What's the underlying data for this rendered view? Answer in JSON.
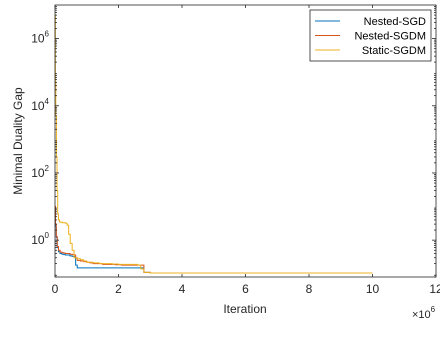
{
  "chart_data": {
    "type": "line",
    "title": "",
    "xlabel": "Iteration",
    "ylabel": "Minimal Duality Gap",
    "xlim": [
      0,
      12000000
    ],
    "ylim": [
      0.08,
      10000000
    ],
    "yscale": "log",
    "grid": false,
    "box": true,
    "legend_position": "top-right",
    "x_ticks": [
      {
        "value": 0,
        "label": "0"
      },
      {
        "value": 2000000,
        "label": "2"
      },
      {
        "value": 4000000,
        "label": "4"
      },
      {
        "value": 6000000,
        "label": "6"
      },
      {
        "value": 8000000,
        "label": "8"
      },
      {
        "value": 10000000,
        "label": "10"
      },
      {
        "value": 12000000,
        "label": "12"
      }
    ],
    "x_exponent_label": {
      "base": "×10",
      "exponent": "6"
    },
    "y_ticks": [
      {
        "value": 1,
        "base": "10",
        "exponent": "0"
      },
      {
        "value": 100,
        "base": "10",
        "exponent": "2"
      },
      {
        "value": 10000,
        "base": "10",
        "exponent": "4"
      },
      {
        "value": 1000000,
        "base": "10",
        "exponent": "6"
      }
    ],
    "series": [
      {
        "name": "Nested-SGD",
        "color": "#0072BD",
        "x": [
          0,
          15000,
          40000,
          70000,
          110000,
          160000,
          220000,
          280000,
          330000,
          400000,
          470000,
          540000,
          600000,
          650000,
          700000,
          800000,
          900000,
          1000000,
          1100000,
          1200000,
          1300000,
          1500000,
          1700000,
          1900000,
          2100000,
          2300000,
          2500000,
          2650000,
          2750000,
          2800000,
          3000000,
          4000000,
          5000000,
          6000000,
          7000000,
          8000000,
          9000000,
          10000000
        ],
        "y": [
          8,
          2.5,
          1.2,
          0.6,
          0.45,
          0.4,
          0.38,
          0.37,
          0.36,
          0.36,
          0.34,
          0.33,
          0.32,
          0.18,
          0.15,
          0.15,
          0.15,
          0.15,
          0.15,
          0.15,
          0.15,
          0.15,
          0.15,
          0.15,
          0.15,
          0.15,
          0.15,
          0.15,
          0.15,
          0.11,
          0.105,
          0.105,
          0.105,
          0.105,
          0.105,
          0.105,
          0.105,
          0.105
        ]
      },
      {
        "name": "Nested-SGDM",
        "color": "#D95319",
        "x": [
          0,
          15000,
          40000,
          70000,
          110000,
          160000,
          220000,
          280000,
          330000,
          400000,
          470000,
          540000,
          600000,
          650000,
          700000,
          800000,
          900000,
          1000000,
          1100000,
          1200000,
          1300000,
          1500000,
          1700000,
          1900000,
          2100000,
          2300000,
          2500000,
          2650000,
          2750000,
          2800000,
          3000000,
          4000000,
          5000000,
          6000000,
          7000000,
          8000000,
          9000000,
          10000000
        ],
        "y": [
          10,
          3,
          1.3,
          0.65,
          0.5,
          0.44,
          0.42,
          0.41,
          0.4,
          0.4,
          0.38,
          0.37,
          0.36,
          0.3,
          0.25,
          0.24,
          0.23,
          0.22,
          0.21,
          0.2,
          0.2,
          0.19,
          0.19,
          0.185,
          0.18,
          0.18,
          0.18,
          0.18,
          0.18,
          0.11,
          0.105,
          0.105,
          0.105,
          0.105,
          0.105,
          0.105,
          0.105,
          0.105
        ]
      },
      {
        "name": "Static-SGDM",
        "color": "#EDB120",
        "x": [
          0,
          10000,
          25000,
          45000,
          65000,
          85000,
          110000,
          140000,
          180000,
          230000,
          280000,
          330000,
          380000,
          430000,
          480000,
          540000,
          600000,
          700000,
          800000,
          900000,
          1000000,
          1200000,
          1400000,
          1600000,
          1800000,
          2000000,
          2200000,
          2400000,
          2600000,
          2700000,
          2800000,
          3000000,
          4000000,
          5000000,
          6000000,
          7000000,
          8000000,
          9000000,
          10000000
        ],
        "y": [
          5000000,
          50000,
          5000,
          300,
          30,
          6,
          4,
          3.5,
          3.4,
          3.3,
          3.3,
          3.2,
          2.8,
          1.5,
          0.8,
          0.5,
          0.3,
          0.28,
          0.26,
          0.24,
          0.22,
          0.21,
          0.2,
          0.2,
          0.195,
          0.19,
          0.19,
          0.19,
          0.18,
          0.14,
          0.11,
          0.105,
          0.105,
          0.105,
          0.105,
          0.105,
          0.105,
          0.105,
          0.105
        ]
      }
    ]
  }
}
